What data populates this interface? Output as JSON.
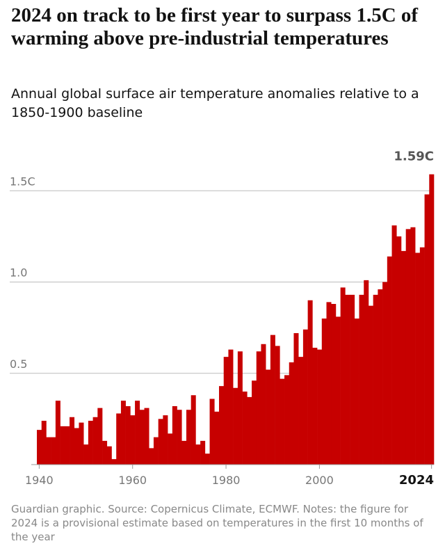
{
  "chart_data": {
    "type": "bar",
    "title": "2024 on track to be first year to surpass 1.5C of warming above pre-industrial temperatures",
    "subtitle": "Annual global surface air temperature anomalies relative to a 1850-1900 baseline",
    "source": "Guardian graphic. Source: Copernicus Climate, ECMWF. Notes: the figure for 2024 is a provisional estimate based on temperatures in the first 10 months of the year",
    "x": [
      1940,
      1941,
      1942,
      1943,
      1944,
      1945,
      1946,
      1947,
      1948,
      1949,
      1950,
      1951,
      1952,
      1953,
      1954,
      1955,
      1956,
      1957,
      1958,
      1959,
      1960,
      1961,
      1962,
      1963,
      1964,
      1965,
      1966,
      1967,
      1968,
      1969,
      1970,
      1971,
      1972,
      1973,
      1974,
      1975,
      1976,
      1977,
      1978,
      1979,
      1980,
      1981,
      1982,
      1983,
      1984,
      1985,
      1986,
      1987,
      1988,
      1989,
      1990,
      1991,
      1992,
      1993,
      1994,
      1995,
      1996,
      1997,
      1998,
      1999,
      2000,
      2001,
      2002,
      2003,
      2004,
      2005,
      2006,
      2007,
      2008,
      2009,
      2010,
      2011,
      2012,
      2013,
      2014,
      2015,
      2016,
      2017,
      2018,
      2019,
      2020,
      2021,
      2022,
      2023,
      2024
    ],
    "values": [
      0.19,
      0.24,
      0.15,
      0.15,
      0.35,
      0.21,
      0.21,
      0.26,
      0.2,
      0.23,
      0.11,
      0.24,
      0.26,
      0.31,
      0.13,
      0.1,
      0.03,
      0.28,
      0.35,
      0.32,
      0.27,
      0.35,
      0.3,
      0.31,
      0.09,
      0.15,
      0.25,
      0.27,
      0.17,
      0.32,
      0.3,
      0.13,
      0.3,
      0.38,
      0.11,
      0.13,
      0.06,
      0.36,
      0.29,
      0.43,
      0.59,
      0.63,
      0.42,
      0.62,
      0.4,
      0.37,
      0.46,
      0.62,
      0.66,
      0.52,
      0.71,
      0.65,
      0.47,
      0.49,
      0.56,
      0.72,
      0.59,
      0.74,
      0.9,
      0.64,
      0.63,
      0.8,
      0.89,
      0.88,
      0.81,
      0.97,
      0.93,
      0.93,
      0.8,
      0.93,
      1.01,
      0.87,
      0.93,
      0.96,
      1.0,
      1.14,
      1.31,
      1.25,
      1.17,
      1.29,
      1.3,
      1.16,
      1.19,
      1.48,
      1.59
    ],
    "color": "#c70000",
    "annotation": {
      "x": 2024,
      "value": 1.59,
      "label": "1.59C"
    },
    "xlim": [
      1939.5,
      2024.5
    ],
    "xticks": [
      1940,
      1960,
      1980,
      2000,
      2024
    ],
    "ylim": [
      0,
      1.6
    ],
    "yticks": [
      0.5,
      {
        "value": 1,
        "label": "1.0"
      },
      {
        "value": 1.5,
        "label": "1.5C"
      }
    ],
    "grid": true
  }
}
